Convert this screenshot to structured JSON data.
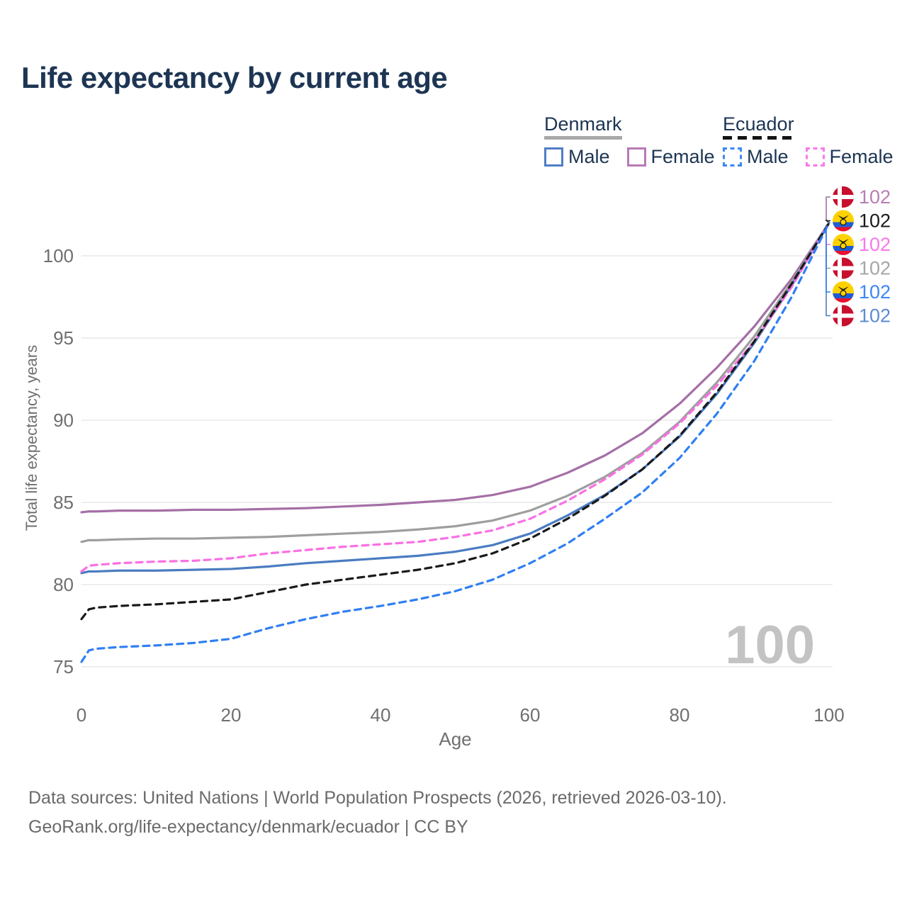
{
  "title": "Life expectancy by current age",
  "legend": {
    "groups": [
      {
        "country": "Denmark",
        "line_style": "solid",
        "header_line_color": "#a8a8a8",
        "items": [
          {
            "label": "Male",
            "box_color": "#4e7fc4",
            "box_style": "solid"
          },
          {
            "label": "Female",
            "box_color": "#b87ab4",
            "box_style": "solid"
          }
        ]
      },
      {
        "country": "Ecuador",
        "line_style": "dashed",
        "header_line_color": "#141414",
        "items": [
          {
            "label": "Male",
            "box_color": "#3d87f5",
            "box_style": "dashed"
          },
          {
            "label": "Female",
            "box_color": "#fb78e9",
            "box_style": "dashed"
          }
        ]
      }
    ]
  },
  "watermark": "100",
  "footer": {
    "line1": "Data sources: United Nations | World Population Prospects (2026, retrieved 2026-03-10).",
    "line2": "GeoRank.org/life-expectancy/denmark/ecuador | CC BY"
  },
  "chart_data": {
    "type": "line",
    "title": "Life expectancy by current age",
    "xlabel": "Age",
    "ylabel": "Total life expectancy, years",
    "xlim": [
      0,
      100
    ],
    "ylim": [
      74.5,
      103
    ],
    "xticks": [
      0,
      20,
      40,
      60,
      80,
      100
    ],
    "yticks": [
      75,
      80,
      85,
      90,
      95,
      100
    ],
    "grid": "horizontal-only",
    "legend_position": "top-right",
    "ages": [
      0,
      1,
      2,
      5,
      10,
      15,
      20,
      25,
      30,
      35,
      40,
      45,
      50,
      55,
      60,
      65,
      70,
      75,
      80,
      85,
      90,
      95,
      100
    ],
    "series": [
      {
        "name": "Denmark Female",
        "country": "Denmark",
        "sex": "Female",
        "color": "#a56fa6",
        "dashed": false,
        "end_label": "102",
        "end_label_color": "#b77fb3",
        "end_row": 0,
        "values": [
          84.4,
          84.45,
          84.45,
          84.5,
          84.5,
          84.55,
          84.55,
          84.6,
          84.65,
          84.75,
          84.85,
          85.0,
          85.15,
          85.45,
          85.95,
          86.8,
          87.85,
          89.2,
          91.0,
          93.2,
          95.7,
          98.6,
          102
        ]
      },
      {
        "name": "Denmark",
        "country": "Denmark",
        "sex": "All",
        "color": "#9e9e9e",
        "dashed": false,
        "end_label": "102",
        "end_label_color": "#a6a6a6",
        "end_row": 3,
        "values": [
          82.6,
          82.7,
          82.7,
          82.75,
          82.8,
          82.8,
          82.85,
          82.9,
          83.0,
          83.1,
          83.2,
          83.35,
          83.55,
          83.9,
          84.5,
          85.4,
          86.55,
          88.0,
          89.9,
          92.3,
          95.1,
          98.4,
          102
        ]
      },
      {
        "name": "Denmark Male",
        "country": "Denmark",
        "sex": "Male",
        "color": "#4a7cc1",
        "dashed": false,
        "end_label": "102",
        "end_label_color": "#5e8bd0",
        "end_row": 5,
        "values": [
          80.7,
          80.8,
          80.8,
          80.85,
          80.85,
          80.9,
          80.95,
          81.1,
          81.3,
          81.45,
          81.6,
          81.75,
          82.0,
          82.4,
          83.1,
          84.2,
          85.45,
          87.0,
          89.0,
          91.6,
          94.7,
          98.2,
          102
        ]
      },
      {
        "name": "Ecuador Female",
        "country": "Ecuador",
        "sex": "Female",
        "color": "#fb6fe4",
        "dashed": true,
        "end_label": "102",
        "end_label_color": "#fb78e9",
        "end_row": 2,
        "values": [
          80.8,
          81.15,
          81.2,
          81.3,
          81.4,
          81.45,
          81.6,
          81.9,
          82.1,
          82.3,
          82.45,
          82.6,
          82.9,
          83.3,
          84.0,
          85.1,
          86.4,
          87.9,
          89.8,
          92.1,
          94.8,
          98.1,
          102
        ]
      },
      {
        "name": "Ecuador",
        "country": "Ecuador",
        "sex": "All",
        "color": "#1a1a1a",
        "dashed": true,
        "end_label": "102",
        "end_label_color": "#1a1a1a",
        "end_row": 1,
        "values": [
          77.9,
          78.5,
          78.6,
          78.7,
          78.8,
          78.95,
          79.1,
          79.55,
          80.0,
          80.3,
          80.6,
          80.9,
          81.3,
          81.9,
          82.8,
          84.0,
          85.4,
          87.0,
          89.05,
          91.7,
          94.8,
          98.3,
          102
        ]
      },
      {
        "name": "Ecuador Male",
        "country": "Ecuador",
        "sex": "Male",
        "color": "#2f7ff2",
        "dashed": true,
        "end_label": "102",
        "end_label_color": "#3d87f5",
        "end_row": 4,
        "values": [
          75.3,
          76.0,
          76.1,
          76.2,
          76.3,
          76.45,
          76.7,
          77.35,
          77.9,
          78.35,
          78.7,
          79.1,
          79.6,
          80.3,
          81.3,
          82.5,
          84.0,
          85.6,
          87.7,
          90.4,
          93.6,
          97.5,
          102
        ]
      }
    ]
  }
}
